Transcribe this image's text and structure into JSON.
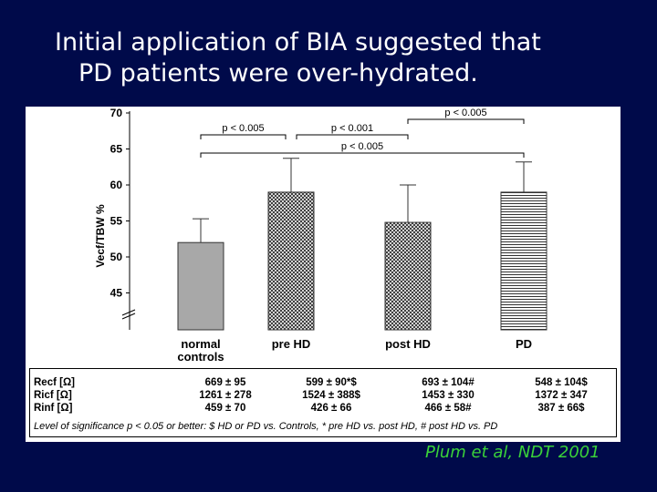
{
  "slide": {
    "title_line1": "Initial application of BIA suggested that",
    "title_line2": "PD patients were over-hydrated.",
    "citation": "Plum et al, NDT 2001"
  },
  "chart_data": {
    "type": "bar",
    "ylabel": "Vecf/TBW %",
    "ylim": [
      45,
      70
    ],
    "yticks": [
      "70",
      "65",
      "60",
      "55",
      "50",
      "45"
    ],
    "categories": [
      "normal controls",
      "pre HD",
      "post HD",
      "PD"
    ],
    "category_lines": [
      [
        "normal",
        "controls"
      ],
      [
        "pre HD"
      ],
      [
        "post HD"
      ],
      [
        "PD"
      ]
    ],
    "values": [
      52.0,
      59.0,
      54.8,
      59.0
    ],
    "error_upper": [
      55.3,
      63.7,
      60.0,
      63.2
    ],
    "bar_patterns": [
      "solid-gray",
      "crosshatch",
      "crosshatch",
      "horizontal-lines"
    ],
    "significance": [
      {
        "label": "p < 0.005",
        "from": 0,
        "to": 1
      },
      {
        "label": "p < 0.001",
        "from": 1,
        "to": 2
      },
      {
        "label": "p < 0.005",
        "from": 2,
        "to": 3
      },
      {
        "label": "p < 0.005",
        "from": 0,
        "to": 3
      }
    ]
  },
  "table": {
    "row_labels": [
      "Recf [Ω]",
      "Ricf [Ω]",
      "Rinf [Ω]"
    ],
    "columns": [
      [
        "669 ± 95",
        "1261 ± 278",
        "459 ± 70"
      ],
      [
        "599 ± 90*$",
        "1524 ± 388$",
        "426 ± 66"
      ],
      [
        "693 ± 104#",
        "1453 ± 330",
        "466 ± 58#"
      ],
      [
        "548 ± 104$",
        "1372 ± 347",
        "387 ± 66$"
      ]
    ],
    "note": "Level of significance p < 0.05 or better: $ HD or PD vs. Controls, * pre HD vs. post HD, # post HD vs. PD"
  },
  "colors": {
    "background": "#000a4a",
    "title": "#ffffff",
    "citation": "#3ad13a",
    "bar_gray": "#a8a8a8"
  }
}
